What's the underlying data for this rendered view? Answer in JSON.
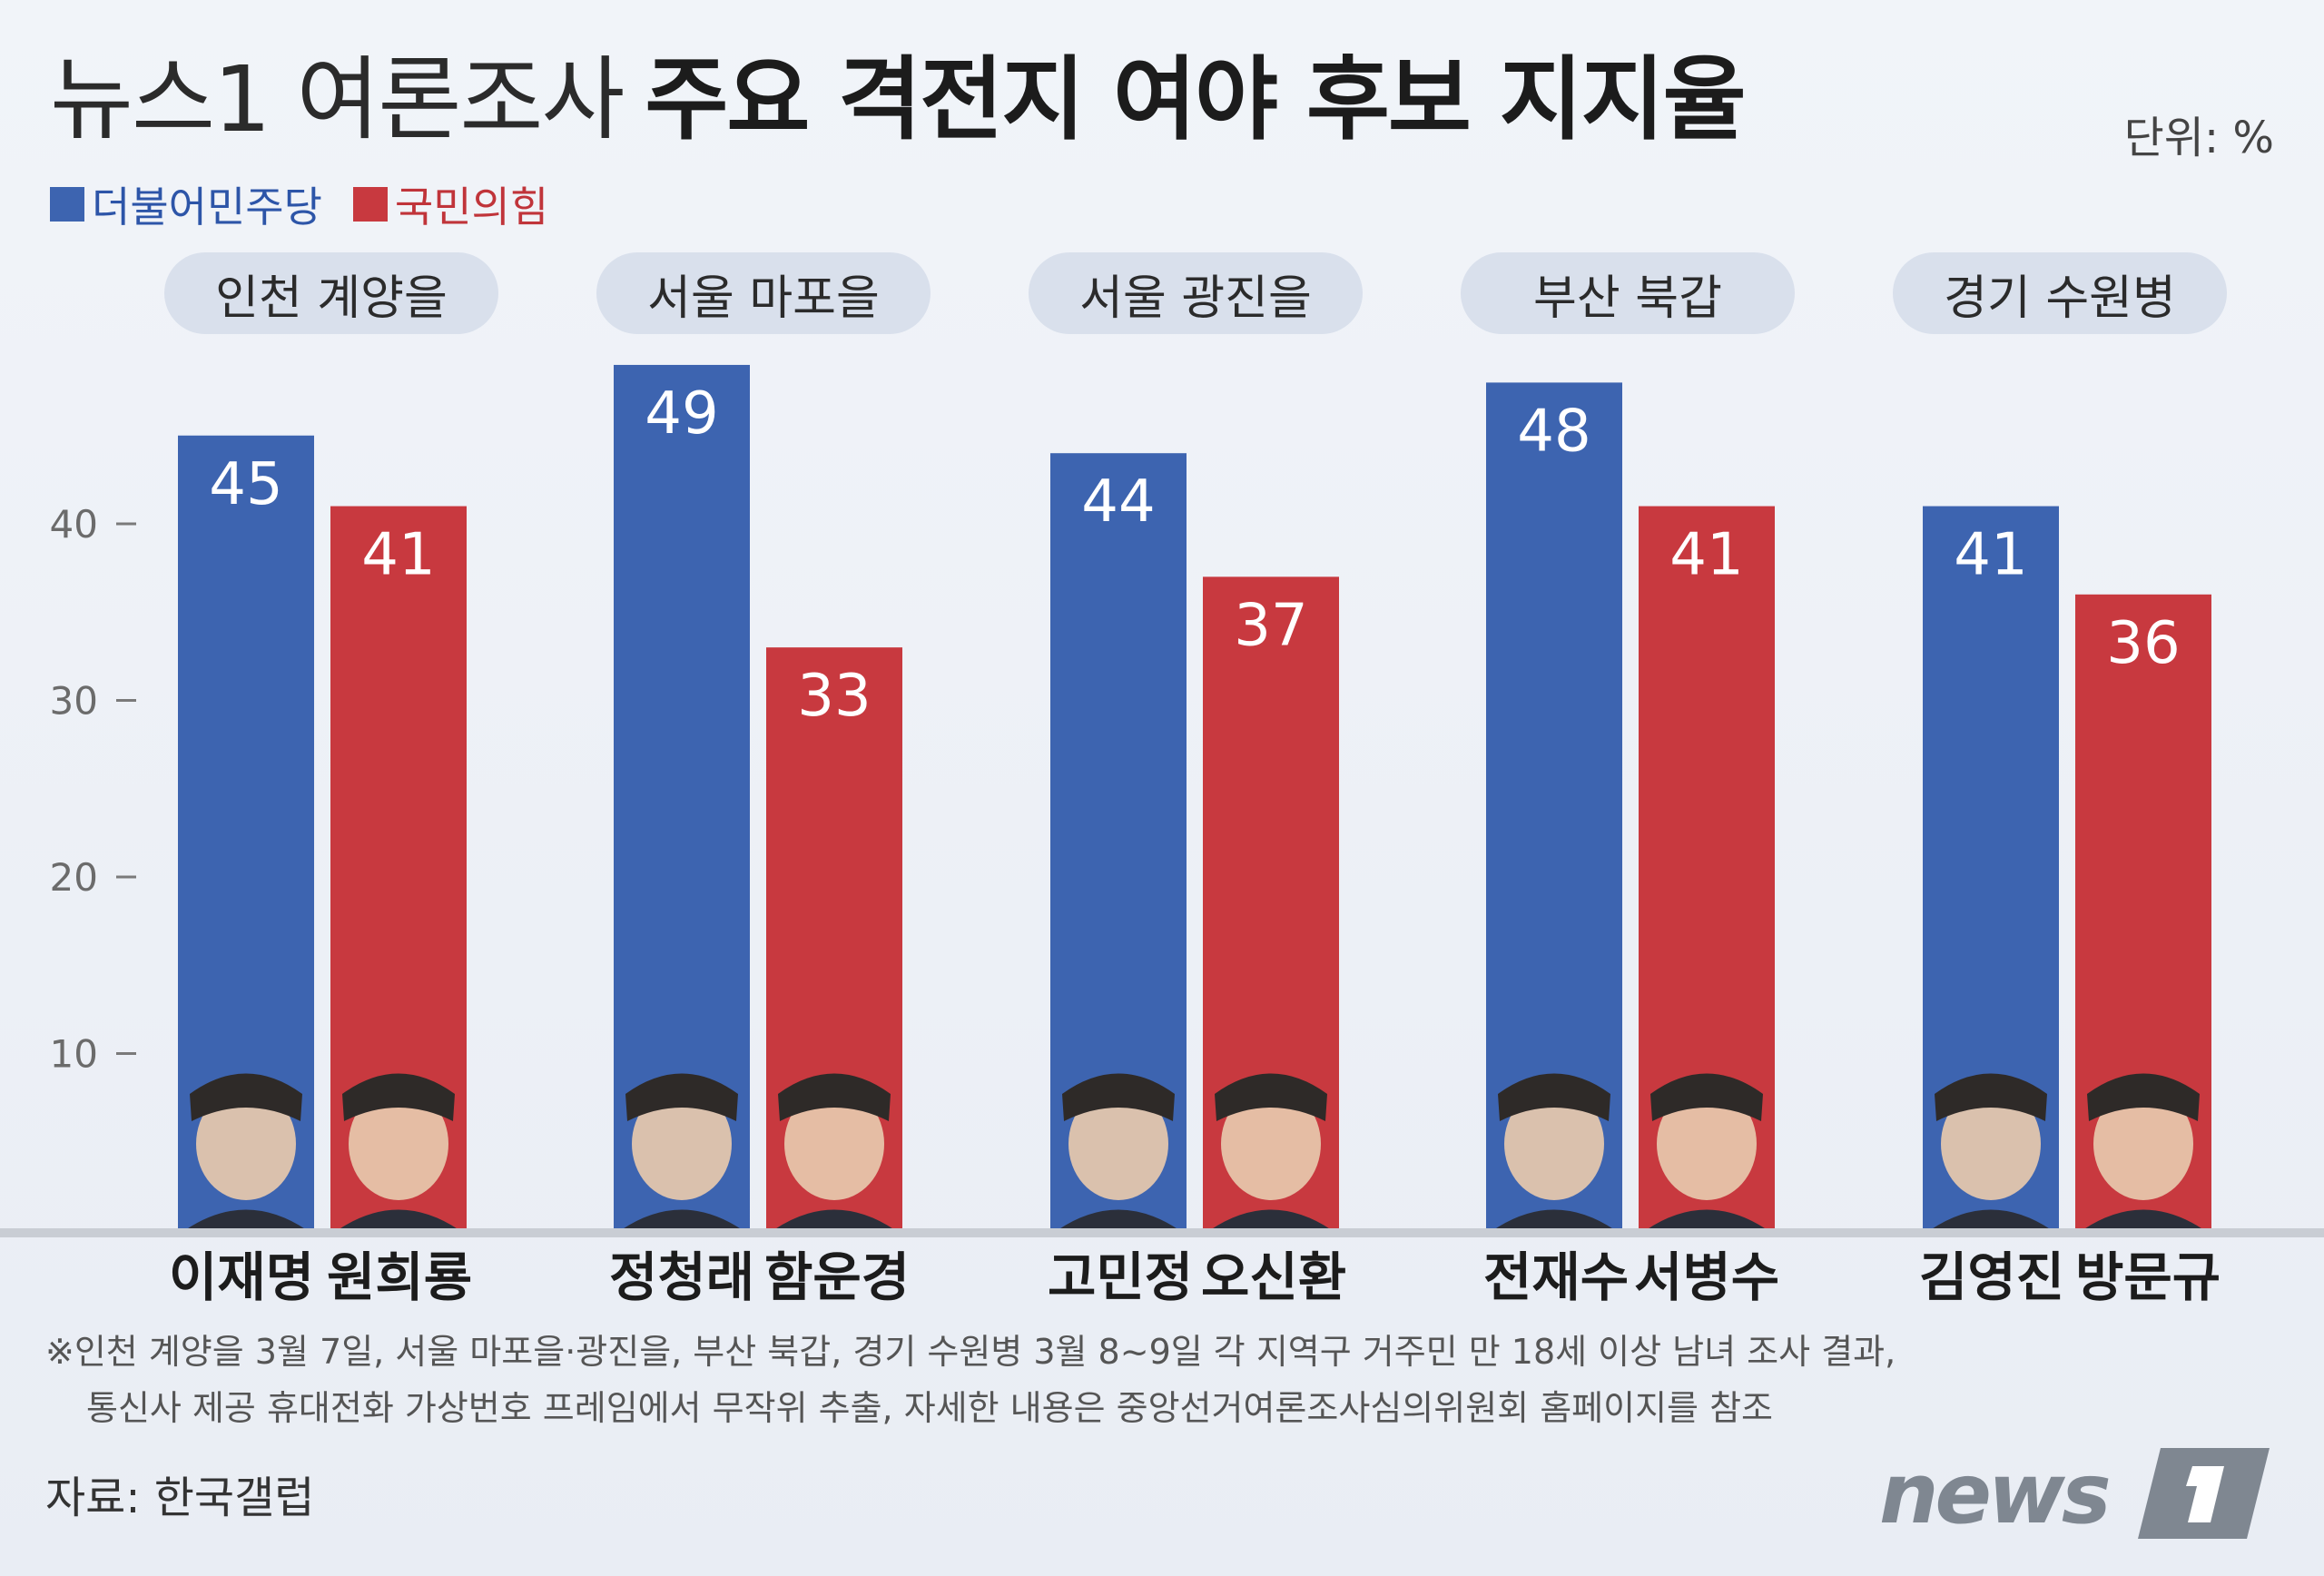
{
  "title": {
    "light": "뉴스1 여론조사",
    "bold": "주요 격전지 여야 후보 지지율"
  },
  "unit": "단위: %",
  "legend": [
    {
      "label": "더불어민주당",
      "color": "#3d64b0"
    },
    {
      "label": "국민의힘",
      "color": "#c8393f"
    }
  ],
  "chart_data": {
    "type": "bar",
    "categories": [
      "인천 계양을",
      "서울 마포을",
      "서울 광진을",
      "부산 북갑",
      "경기 수원병"
    ],
    "series": [
      {
        "name": "더불어민주당",
        "color": "#3d64b0",
        "values": [
          45,
          49,
          44,
          48,
          41
        ],
        "candidates": [
          "이재명",
          "정청래",
          "고민정",
          "전재수",
          "김영진"
        ]
      },
      {
        "name": "국민의힘",
        "color": "#c8393f",
        "values": [
          41,
          33,
          37,
          41,
          36
        ],
        "candidates": [
          "원희룡",
          "함운경",
          "오신환",
          "서병수",
          "방문규"
        ]
      }
    ],
    "yticks": [
      10,
      20,
      30,
      40
    ],
    "ylim": [
      0,
      50
    ],
    "grid": false,
    "legend_position": "top-left"
  },
  "footnote": {
    "line1": "※인천 계양을 3월 7일, 서울 마포을·광진을, 부산 북갑, 경기 수원병 3월 8~9일 각 지역구 거주민 만 18세 이상 남녀 조사 결과,",
    "line2": "통신사 제공 휴대전화 가상번호 프레임에서 무작위 추출, 자세한 내용은 중앙선거여론조사심의위원회 홈페이지를 참조"
  },
  "source": "자료: 한국갤럽",
  "logo": {
    "word": "news",
    "mark": "1"
  }
}
